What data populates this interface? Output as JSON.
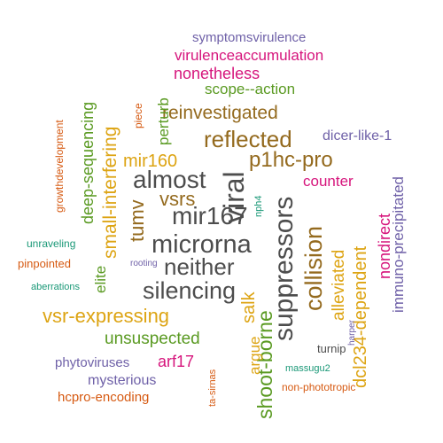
{
  "colors": {
    "gray": "#4d4d4d",
    "orange": "#e07b10",
    "brown": "#946a1e",
    "green": "#5a9a22",
    "gold": "#dda413",
    "magenta": "#d6157c",
    "purple": "#6f61a8",
    "teal": "#1a9877",
    "rust": "#d65a12"
  },
  "words": [
    {
      "text": "symptomsvirulence",
      "color": "purple",
      "size": 15,
      "rotate": 0
    },
    {
      "text": "virulenceaccumulation",
      "color": "magenta",
      "size": 17,
      "rotate": 0
    },
    {
      "text": "nonetheless",
      "color": "magenta",
      "size": 18,
      "rotate": 0
    },
    {
      "text": "scope--action",
      "color": "green",
      "size": 17,
      "rotate": 0
    },
    {
      "text": "reinvestigated",
      "color": "brown",
      "size": 21,
      "rotate": 0
    },
    {
      "text": "reflected",
      "color": "brown",
      "size": 26,
      "rotate": 0
    },
    {
      "text": "dicer-like-1",
      "color": "purple",
      "size": 16,
      "rotate": 0
    },
    {
      "text": "mir160",
      "color": "gold",
      "size": 20,
      "rotate": 0
    },
    {
      "text": "p1hc-pro",
      "color": "brown",
      "size": 24,
      "rotate": 0
    },
    {
      "text": "almost",
      "color": "gray",
      "size": 28,
      "rotate": 0
    },
    {
      "text": "counter",
      "color": "magenta",
      "size": 17,
      "rotate": 0
    },
    {
      "text": "vsrs",
      "color": "brown",
      "size": 22,
      "rotate": 0
    },
    {
      "text": "mir167",
      "color": "gray",
      "size": 28,
      "rotate": 0
    },
    {
      "text": "microrna",
      "color": "gray",
      "size": 29,
      "rotate": 0
    },
    {
      "text": "neither",
      "color": "gray",
      "size": 26,
      "rotate": 0
    },
    {
      "text": "silencing",
      "color": "gray",
      "size": 27,
      "rotate": 0
    },
    {
      "text": "vsr-expressing",
      "color": "gold",
      "size": 22,
      "rotate": 0
    },
    {
      "text": "unsuspected",
      "color": "green",
      "size": 19,
      "rotate": 0
    },
    {
      "text": "arf17",
      "color": "magenta",
      "size": 18,
      "rotate": 0
    },
    {
      "text": "phytoviruses",
      "color": "purple",
      "size": 15,
      "rotate": 0
    },
    {
      "text": "mysterious",
      "color": "purple",
      "size": 16,
      "rotate": 0
    },
    {
      "text": "hcpro-encoding",
      "color": "rust",
      "size": 15,
      "rotate": 0
    },
    {
      "text": "non-phototropic",
      "color": "rust",
      "size": 12,
      "rotate": 0
    },
    {
      "text": "turnip",
      "color": "gray",
      "size": 13,
      "rotate": 0
    },
    {
      "text": "massugu2",
      "color": "teal",
      "size": 11,
      "rotate": 0
    },
    {
      "text": "unraveling",
      "color": "teal",
      "size": 12,
      "rotate": 0
    },
    {
      "text": "pinpointed",
      "color": "rust",
      "size": 13,
      "rotate": 0
    },
    {
      "text": "rooting",
      "color": "purple",
      "size": 10,
      "rotate": 0
    },
    {
      "text": "aberrations",
      "color": "teal",
      "size": 11,
      "rotate": 0
    },
    {
      "text": "viral",
      "color": "gray",
      "size": 32,
      "rotate": -90
    },
    {
      "text": "suppressors",
      "color": "gray",
      "size": 30,
      "rotate": -90
    },
    {
      "text": "collision",
      "color": "brown",
      "size": 27,
      "rotate": -90
    },
    {
      "text": "shoot-borne",
      "color": "green",
      "size": 23,
      "rotate": -90
    },
    {
      "text": "salk",
      "color": "gold",
      "size": 20,
      "rotate": -90
    },
    {
      "text": "argue",
      "color": "gold",
      "size": 17,
      "rotate": -90
    },
    {
      "text": "alleviated",
      "color": "gold",
      "size": 19,
      "rotate": -90
    },
    {
      "text": "dcl234-dependent",
      "color": "gold",
      "size": 20,
      "rotate": -90
    },
    {
      "text": "nondirect",
      "color": "magenta",
      "size": 18,
      "rotate": -90
    },
    {
      "text": "immuno-precipitated",
      "color": "purple",
      "size": 17,
      "rotate": -90
    },
    {
      "text": "tumv",
      "color": "brown",
      "size": 22,
      "rotate": -90
    },
    {
      "text": "small-interfering",
      "color": "gold",
      "size": 21,
      "rotate": -90
    },
    {
      "text": "deep-sequencing",
      "color": "green",
      "size": 18,
      "rotate": -90
    },
    {
      "text": "elite",
      "color": "green",
      "size": 17,
      "rotate": -90
    },
    {
      "text": "perturb",
      "color": "green",
      "size": 17,
      "rotate": -90
    },
    {
      "text": "growthdevelopment",
      "color": "rust",
      "size": 12,
      "rotate": -90
    },
    {
      "text": "piece",
      "color": "rust",
      "size": 12,
      "rotate": -90
    },
    {
      "text": "nph4",
      "color": "teal",
      "size": 11,
      "rotate": -90
    },
    {
      "text": "harper",
      "color": "purple",
      "size": 10,
      "rotate": -90
    },
    {
      "text": "ta-sirnas",
      "color": "rust",
      "size": 11,
      "rotate": -90
    }
  ]
}
